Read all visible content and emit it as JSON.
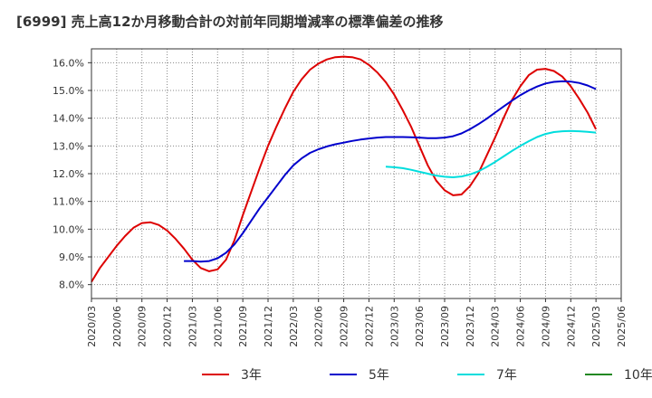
{
  "chart_data": {
    "type": "line",
    "title": "[6999]  売上高12か月移動合計の対前年同期増減率の標準偏差の推移",
    "xlabel": "",
    "ylabel": "",
    "ylim": [
      7.5,
      16.5
    ],
    "yticks": [
      "8.0%",
      "9.0%",
      "10.0%",
      "11.0%",
      "12.0%",
      "13.0%",
      "14.0%",
      "15.0%",
      "16.0%"
    ],
    "ytick_values": [
      8,
      9,
      10,
      11,
      12,
      13,
      14,
      15,
      16
    ],
    "xticks": [
      "2020/03",
      "2020/06",
      "2020/09",
      "2020/12",
      "2021/03",
      "2021/06",
      "2021/09",
      "2021/12",
      "2022/03",
      "2022/06",
      "2022/09",
      "2022/12",
      "2023/03",
      "2023/06",
      "2023/09",
      "2023/12",
      "2024/03",
      "2024/06",
      "2024/09",
      "2024/12",
      "2025/03",
      "2025/06"
    ],
    "grid": true,
    "legend_position": "bottom",
    "series": [
      {
        "name": "3年",
        "color": "#dd0000",
        "points": [
          [
            "2020/03",
            8.1
          ],
          [
            "2020/04",
            8.6
          ],
          [
            "2020/05",
            9.0
          ],
          [
            "2020/06",
            9.4
          ],
          [
            "2020/07",
            9.75
          ],
          [
            "2020/08",
            10.05
          ],
          [
            "2020/09",
            10.22
          ],
          [
            "2020/10",
            10.25
          ],
          [
            "2020/11",
            10.15
          ],
          [
            "2020/12",
            9.95
          ],
          [
            "2021/01",
            9.65
          ],
          [
            "2021/02",
            9.3
          ],
          [
            "2021/03",
            8.9
          ],
          [
            "2021/04",
            8.6
          ],
          [
            "2021/05",
            8.48
          ],
          [
            "2021/06",
            8.55
          ],
          [
            "2021/07",
            8.9
          ],
          [
            "2021/08",
            9.6
          ],
          [
            "2021/09",
            10.5
          ],
          [
            "2021/10",
            11.35
          ],
          [
            "2021/11",
            12.2
          ],
          [
            "2021/12",
            13.0
          ],
          [
            "2022/01",
            13.7
          ],
          [
            "2022/02",
            14.35
          ],
          [
            "2022/03",
            14.95
          ],
          [
            "2022/04",
            15.4
          ],
          [
            "2022/05",
            15.75
          ],
          [
            "2022/06",
            15.97
          ],
          [
            "2022/07",
            16.12
          ],
          [
            "2022/08",
            16.2
          ],
          [
            "2022/09",
            16.22
          ],
          [
            "2022/10",
            16.2
          ],
          [
            "2022/11",
            16.12
          ],
          [
            "2022/12",
            15.92
          ],
          [
            "2023/01",
            15.65
          ],
          [
            "2023/02",
            15.3
          ],
          [
            "2023/03",
            14.85
          ],
          [
            "2023/04",
            14.3
          ],
          [
            "2023/05",
            13.7
          ],
          [
            "2023/06",
            13.0
          ],
          [
            "2023/07",
            12.3
          ],
          [
            "2023/08",
            11.75
          ],
          [
            "2023/09",
            11.4
          ],
          [
            "2023/10",
            11.22
          ],
          [
            "2023/11",
            11.25
          ],
          [
            "2023/12",
            11.55
          ],
          [
            "2024/01",
            12.0
          ],
          [
            "2024/02",
            12.65
          ],
          [
            "2024/03",
            13.3
          ],
          [
            "2024/04",
            14.0
          ],
          [
            "2024/05",
            14.65
          ],
          [
            "2024/06",
            15.15
          ],
          [
            "2024/07",
            15.55
          ],
          [
            "2024/08",
            15.75
          ],
          [
            "2024/09",
            15.78
          ],
          [
            "2024/10",
            15.7
          ],
          [
            "2024/11",
            15.5
          ],
          [
            "2024/12",
            15.15
          ],
          [
            "2025/01",
            14.7
          ],
          [
            "2025/02",
            14.2
          ],
          [
            "2025/03",
            13.6
          ]
        ]
      },
      {
        "name": "5年",
        "color": "#0000cc",
        "points": [
          [
            "2021/02",
            8.85
          ],
          [
            "2021/03",
            8.85
          ],
          [
            "2021/04",
            8.83
          ],
          [
            "2021/05",
            8.85
          ],
          [
            "2021/06",
            8.95
          ],
          [
            "2021/07",
            9.15
          ],
          [
            "2021/08",
            9.45
          ],
          [
            "2021/09",
            9.85
          ],
          [
            "2021/10",
            10.3
          ],
          [
            "2021/11",
            10.75
          ],
          [
            "2021/12",
            11.15
          ],
          [
            "2022/01",
            11.55
          ],
          [
            "2022/02",
            11.95
          ],
          [
            "2022/03",
            12.3
          ],
          [
            "2022/04",
            12.55
          ],
          [
            "2022/05",
            12.75
          ],
          [
            "2022/06",
            12.88
          ],
          [
            "2022/07",
            12.98
          ],
          [
            "2022/08",
            13.06
          ],
          [
            "2022/09",
            13.12
          ],
          [
            "2022/10",
            13.18
          ],
          [
            "2022/11",
            13.23
          ],
          [
            "2022/12",
            13.27
          ],
          [
            "2023/01",
            13.3
          ],
          [
            "2023/02",
            13.32
          ],
          [
            "2023/03",
            13.32
          ],
          [
            "2023/04",
            13.32
          ],
          [
            "2023/05",
            13.31
          ],
          [
            "2023/06",
            13.3
          ],
          [
            "2023/07",
            13.28
          ],
          [
            "2023/08",
            13.28
          ],
          [
            "2023/09",
            13.3
          ],
          [
            "2023/10",
            13.35
          ],
          [
            "2023/11",
            13.45
          ],
          [
            "2023/12",
            13.6
          ],
          [
            "2024/01",
            13.78
          ],
          [
            "2024/02",
            13.98
          ],
          [
            "2024/03",
            14.2
          ],
          [
            "2024/04",
            14.42
          ],
          [
            "2024/05",
            14.63
          ],
          [
            "2024/06",
            14.83
          ],
          [
            "2024/07",
            15.0
          ],
          [
            "2024/08",
            15.14
          ],
          [
            "2024/09",
            15.25
          ],
          [
            "2024/10",
            15.31
          ],
          [
            "2024/11",
            15.33
          ],
          [
            "2024/12",
            15.32
          ],
          [
            "2025/01",
            15.27
          ],
          [
            "2025/02",
            15.18
          ],
          [
            "2025/03",
            15.05
          ]
        ]
      },
      {
        "name": "7年",
        "color": "#00dddd",
        "points": [
          [
            "2023/02",
            12.25
          ],
          [
            "2023/03",
            12.23
          ],
          [
            "2023/04",
            12.2
          ],
          [
            "2023/05",
            12.14
          ],
          [
            "2023/06",
            12.07
          ],
          [
            "2023/07",
            12.0
          ],
          [
            "2023/08",
            11.93
          ],
          [
            "2023/09",
            11.89
          ],
          [
            "2023/10",
            11.87
          ],
          [
            "2023/11",
            11.9
          ],
          [
            "2023/12",
            11.97
          ],
          [
            "2024/01",
            12.08
          ],
          [
            "2024/02",
            12.24
          ],
          [
            "2024/03",
            12.42
          ],
          [
            "2024/04",
            12.62
          ],
          [
            "2024/05",
            12.82
          ],
          [
            "2024/06",
            13.0
          ],
          [
            "2024/07",
            13.17
          ],
          [
            "2024/08",
            13.32
          ],
          [
            "2024/09",
            13.43
          ],
          [
            "2024/10",
            13.5
          ],
          [
            "2024/11",
            13.53
          ],
          [
            "2024/12",
            13.54
          ],
          [
            "2025/01",
            13.53
          ],
          [
            "2025/02",
            13.51
          ],
          [
            "2025/03",
            13.48
          ]
        ]
      },
      {
        "name": "10年",
        "color": "#228822",
        "points": []
      }
    ]
  }
}
